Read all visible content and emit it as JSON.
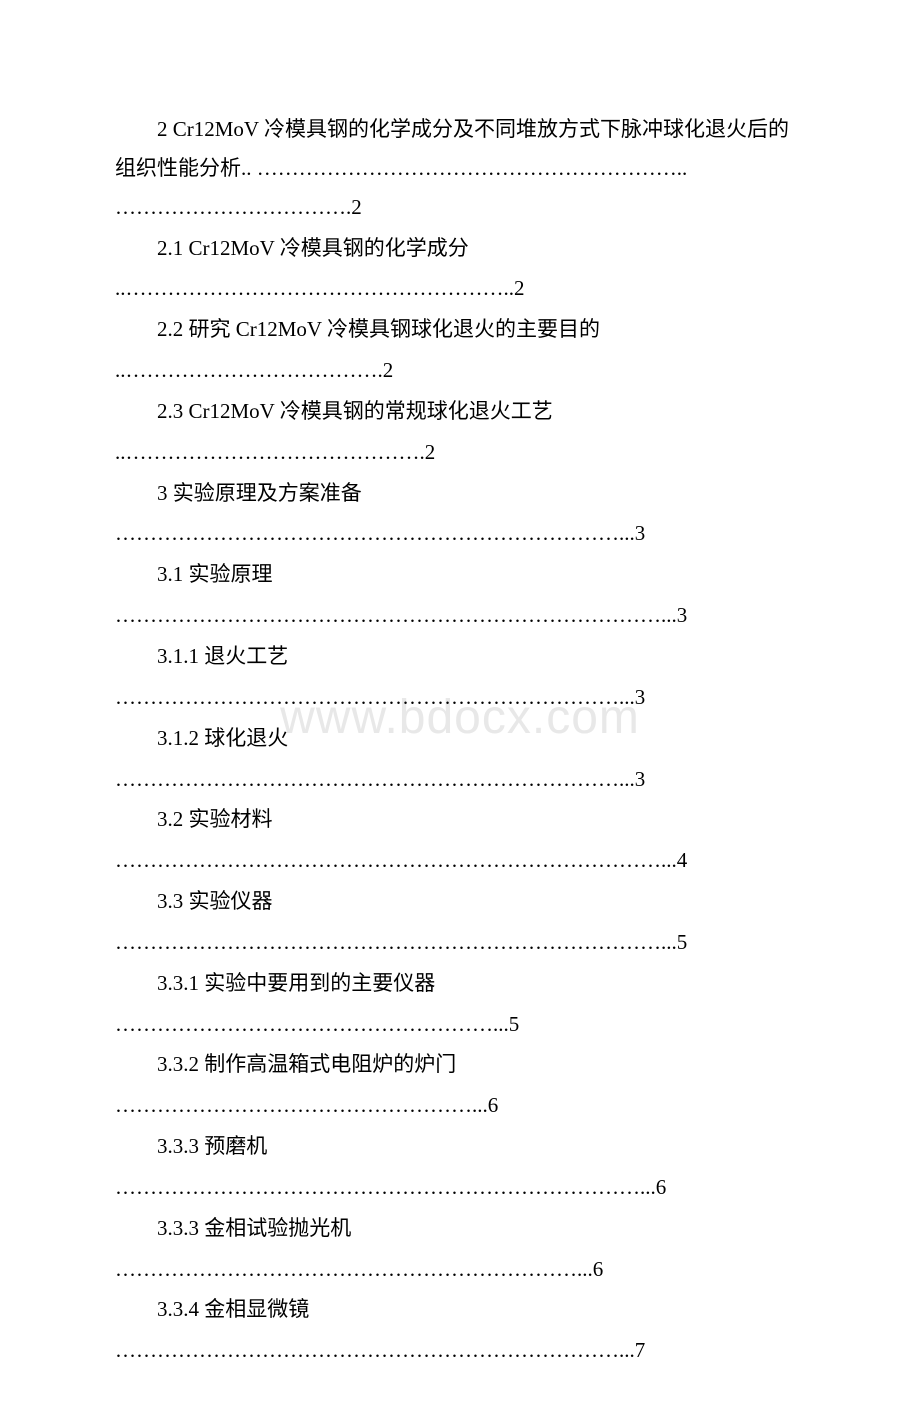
{
  "watermark": "www.bdocx.com",
  "toc": {
    "entry_2": "2 Cr12MoV 冷模具钢的化学成分及不同堆放方式下脉冲球化退火后的组织性能分析.. …………………………………………………….. …………………………….2",
    "entry_2_1": "2.1 Cr12MoV 冷模具钢的化学成分",
    "entry_2_1_dots": "..………………………………………………..2",
    "entry_2_2": "2.2 研究 Cr12MoV 冷模具钢球化退火的主要目的",
    "entry_2_2_dots": "..……………………………….2",
    "entry_2_3": "2.3 Cr12MoV 冷模具钢的常规球化退火工艺",
    "entry_2_3_dots": "..…………………………………….2",
    "entry_3": "3 实验原理及方案准备",
    "entry_3_dots": "………………………………………………………………...3",
    "entry_3_1": "3.1 实验原理",
    "entry_3_1_dots": "……………………………………………………………………...3",
    "entry_3_1_1": "3.1.1 退火工艺",
    "entry_3_1_1_dots": "………………………………………………………………...3",
    "entry_3_1_2": "3.1.2 球化退火",
    "entry_3_1_2_dots": "………………………………………………………………...3",
    "entry_3_2": "3.2 实验材料",
    "entry_3_2_dots": "……………………………………………………………………...4",
    "entry_3_3": "3.3 实验仪器",
    "entry_3_3_dots": "……………………………………………………………………...5",
    "entry_3_3_1": "3.3.1 实验中要用到的主要仪器",
    "entry_3_3_1_dots": "………………………………………………...5",
    "entry_3_3_2": "3.3.2 制作高温箱式电阻炉的炉门",
    "entry_3_3_2_dots": "……………………………………………...6",
    "entry_3_3_3a": "3.3.3 预磨机",
    "entry_3_3_3a_dots": "…………………………………………………………………...6",
    "entry_3_3_3b": "3.3.3 金相试验抛光机",
    "entry_3_3_3b_dots": "…………………………………………………………...6",
    "entry_3_3_4": "3.3.4 金相显微镜",
    "entry_3_3_4_dots": "………………………………………………………………...7"
  }
}
